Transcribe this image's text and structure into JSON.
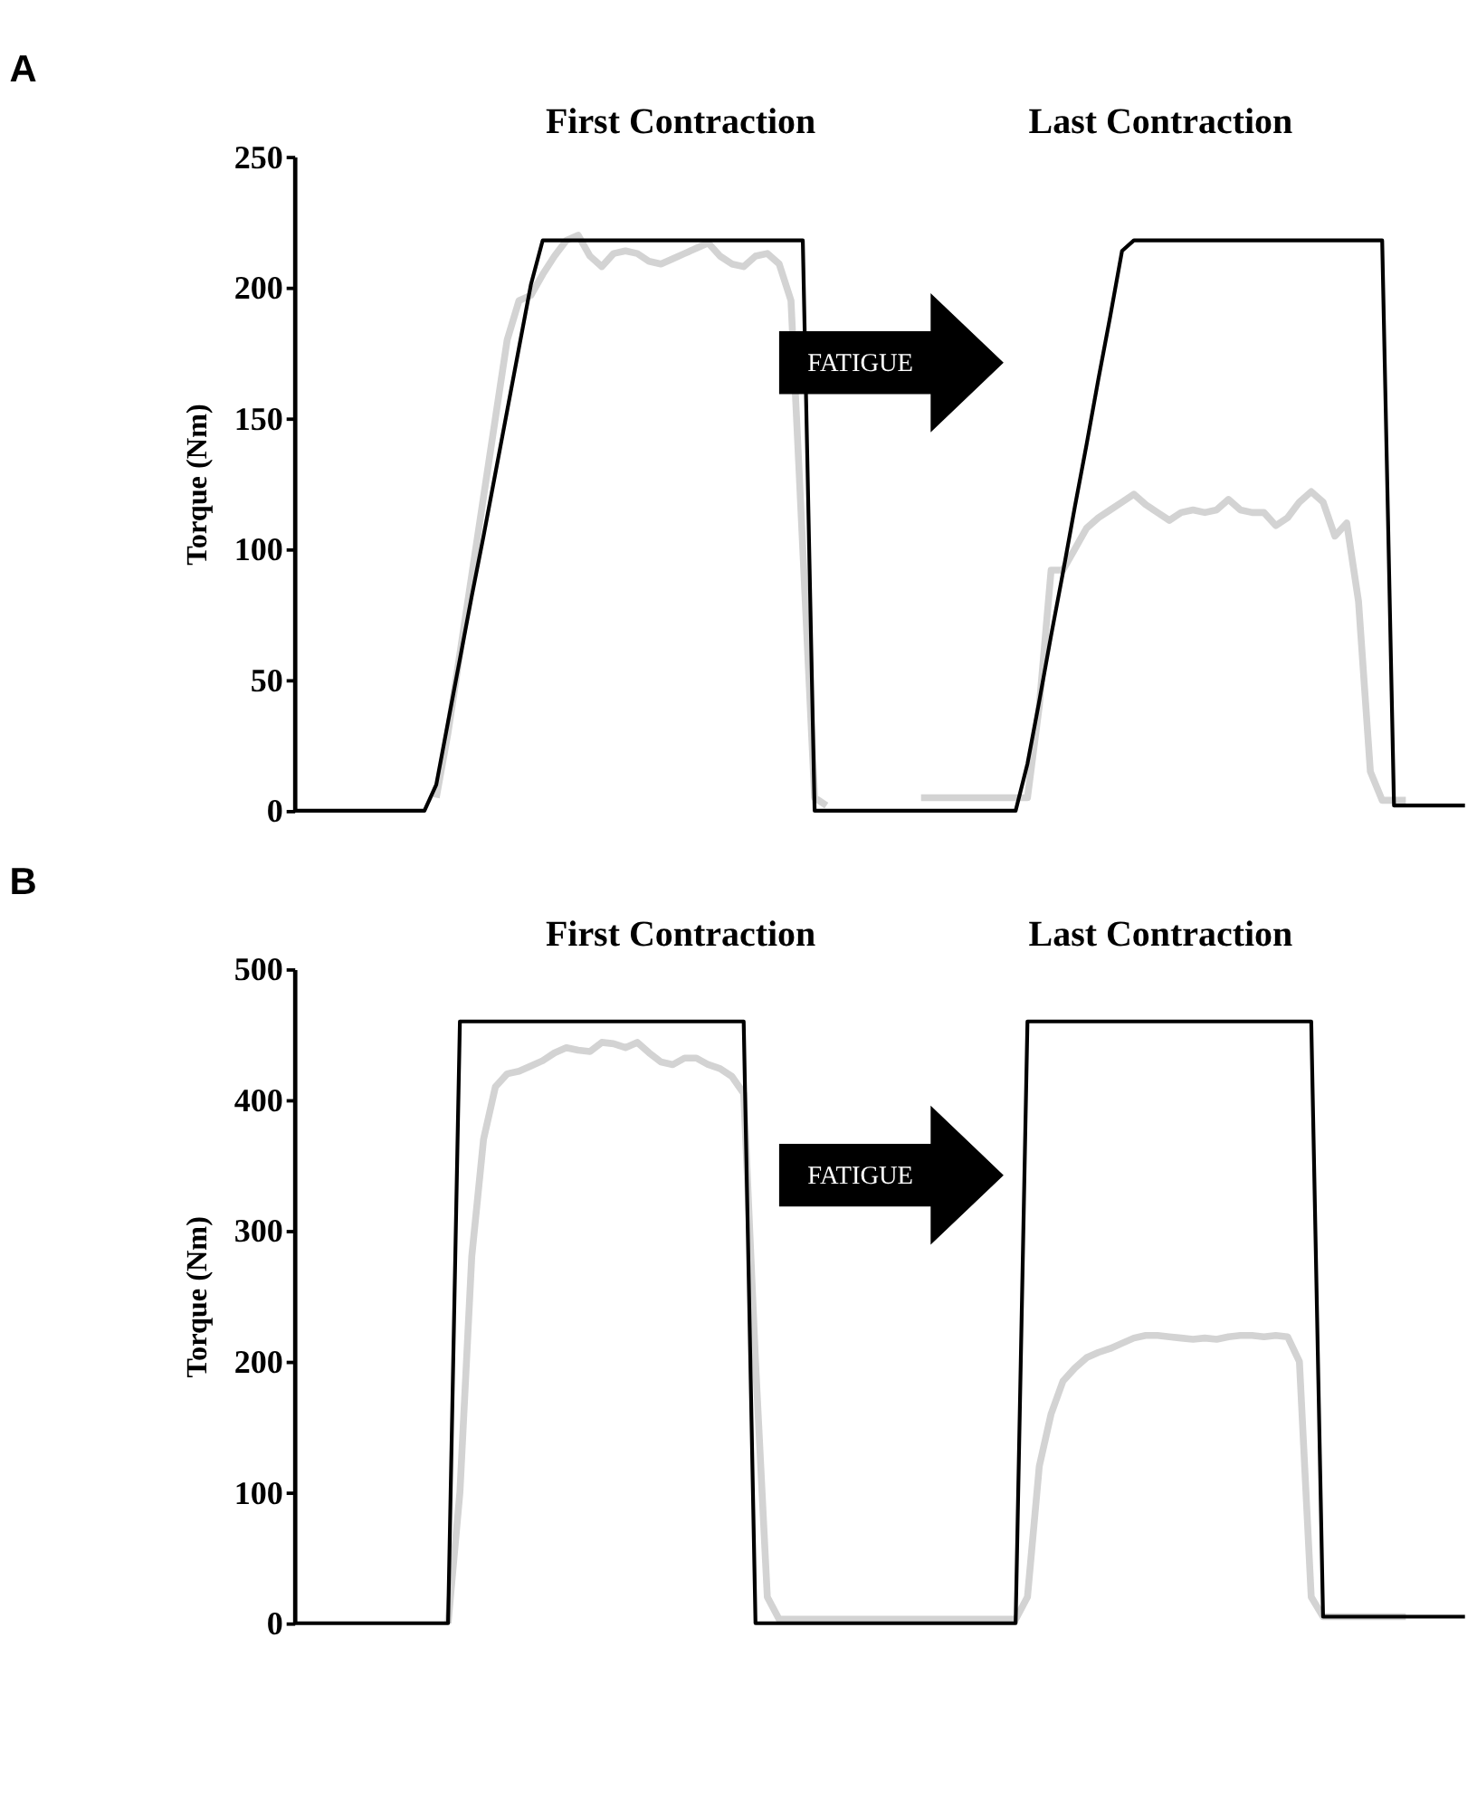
{
  "chart_data": [
    {
      "type": "line",
      "title": "A",
      "ylabel": "Torque (Nm)",
      "ylim": [
        0,
        250
      ],
      "yticks": [
        0,
        50,
        100,
        150,
        200,
        250
      ],
      "grid": false,
      "marker": "none",
      "line_style": "solid",
      "categories": [
        null,
        null,
        null,
        null,
        null,
        null,
        null,
        null,
        null,
        null,
        null,
        null,
        null,
        null,
        null,
        null,
        null,
        null,
        null,
        null,
        null,
        null,
        null,
        null,
        null,
        null,
        null,
        null,
        null,
        null,
        null,
        null,
        null,
        null,
        null,
        null,
        null,
        null,
        null,
        null,
        null,
        null,
        null,
        null,
        null,
        null,
        null,
        null,
        null,
        null,
        null,
        null,
        null,
        null,
        null,
        null,
        null,
        null,
        null,
        null,
        null,
        null,
        null,
        null,
        null,
        null,
        null,
        null,
        null,
        null,
        null,
        null,
        null,
        null,
        null,
        null,
        null,
        null,
        null,
        null,
        null,
        null,
        null,
        null,
        null,
        null,
        null,
        null,
        null,
        null,
        null,
        null,
        null,
        null,
        null,
        null,
        null,
        null,
        null,
        null
      ],
      "annotations": [
        "First Contraction",
        "Last Contraction",
        "FATIGUE"
      ],
      "series": [
        {
          "color": "#d3d3d3",
          "values": [
            null,
            null,
            null,
            null,
            null,
            null,
            null,
            null,
            null,
            null,
            null,
            null,
            5,
            30,
            60,
            90,
            120,
            150,
            180,
            195,
            197,
            205,
            212,
            218,
            220,
            212,
            208,
            213,
            214,
            213,
            210,
            209,
            211,
            213,
            215,
            217,
            212,
            209,
            208,
            212,
            213,
            209,
            195,
            100,
            5,
            2,
            null,
            null,
            null,
            null,
            null,
            null,
            null,
            5,
            5,
            5,
            5,
            5,
            5,
            5,
            5,
            5,
            5,
            40,
            92,
            92,
            100,
            108,
            112,
            115,
            118,
            121,
            117,
            114,
            111,
            114,
            115,
            114,
            115,
            119,
            115,
            114,
            114,
            109,
            112,
            118,
            122,
            118,
            105,
            110,
            80,
            15,
            4,
            4,
            4,
            null,
            null,
            null,
            null,
            null
          ]
        },
        {
          "color": "#000000",
          "values": [
            0,
            0,
            0,
            0,
            0,
            0,
            0,
            0,
            0,
            0,
            0,
            0,
            10,
            34,
            58,
            82,
            105,
            129,
            153,
            177,
            201,
            218,
            218,
            218,
            218,
            218,
            218,
            218,
            218,
            218,
            218,
            218,
            218,
            218,
            218,
            218,
            218,
            218,
            218,
            218,
            218,
            218,
            218,
            218,
            0,
            0,
            0,
            0,
            0,
            0,
            0,
            0,
            0,
            0,
            0,
            0,
            0,
            0,
            0,
            0,
            0,
            0,
            18,
            42,
            67,
            91,
            116,
            140,
            165,
            189,
            214,
            218,
            218,
            218,
            218,
            218,
            218,
            218,
            218,
            218,
            218,
            218,
            218,
            218,
            218,
            218,
            218,
            218,
            218,
            218,
            218,
            218,
            218,
            2,
            2,
            2,
            2,
            2,
            2,
            2
          ]
        }
      ]
    },
    {
      "type": "line",
      "title": "B",
      "ylabel": "Torque (Nm)",
      "ylim": [
        0,
        500
      ],
      "yticks": [
        0,
        100,
        200,
        300,
        400,
        500
      ],
      "grid": false,
      "marker": "none",
      "line_style": "solid",
      "categories": [
        null,
        null,
        null,
        null,
        null,
        null,
        null,
        null,
        null,
        null,
        null,
        null,
        null,
        null,
        null,
        null,
        null,
        null,
        null,
        null,
        null,
        null,
        null,
        null,
        null,
        null,
        null,
        null,
        null,
        null,
        null,
        null,
        null,
        null,
        null,
        null,
        null,
        null,
        null,
        null,
        null,
        null,
        null,
        null,
        null,
        null,
        null,
        null,
        null,
        null,
        null,
        null,
        null,
        null,
        null,
        null,
        null,
        null,
        null,
        null,
        null,
        null,
        null,
        null,
        null,
        null,
        null,
        null,
        null,
        null,
        null,
        null,
        null,
        null,
        null,
        null,
        null,
        null,
        null,
        null,
        null,
        null,
        null,
        null,
        null,
        null,
        null,
        null,
        null,
        null,
        null,
        null,
        null,
        null,
        null,
        null,
        null,
        null,
        null,
        null
      ],
      "annotations": [
        "First Contraction",
        "Last Contraction",
        "FATIGUE"
      ],
      "series": [
        {
          "color": "#d3d3d3",
          "values": [
            null,
            null,
            null,
            null,
            null,
            null,
            null,
            null,
            null,
            null,
            null,
            null,
            null,
            0,
            100,
            280,
            370,
            410,
            420,
            422,
            426,
            430,
            436,
            440,
            438,
            437,
            444,
            443,
            440,
            444,
            436,
            429,
            427,
            432,
            432,
            427,
            424,
            418,
            405,
            200,
            20,
            3,
            3,
            3,
            3,
            3,
            3,
            3,
            3,
            3,
            3,
            3,
            3,
            3,
            3,
            3,
            3,
            3,
            3,
            3,
            3,
            3,
            20,
            120,
            160,
            185,
            195,
            203,
            207,
            210,
            214,
            218,
            220,
            220,
            219,
            218,
            217,
            218,
            217,
            219,
            220,
            220,
            219,
            220,
            219,
            200,
            20,
            5,
            5,
            5,
            5,
            5,
            5,
            5,
            5,
            null,
            null,
            null,
            null,
            null
          ]
        },
        {
          "color": "#000000",
          "values": [
            0,
            0,
            0,
            0,
            0,
            0,
            0,
            0,
            0,
            0,
            0,
            0,
            0,
            0,
            460,
            460,
            460,
            460,
            460,
            460,
            460,
            460,
            460,
            460,
            460,
            460,
            460,
            460,
            460,
            460,
            460,
            460,
            460,
            460,
            460,
            460,
            460,
            460,
            460,
            0,
            0,
            0,
            0,
            0,
            0,
            0,
            0,
            0,
            0,
            0,
            0,
            0,
            0,
            0,
            0,
            0,
            0,
            0,
            0,
            0,
            0,
            0,
            460,
            460,
            460,
            460,
            460,
            460,
            460,
            460,
            460,
            460,
            460,
            460,
            460,
            460,
            460,
            460,
            460,
            460,
            460,
            460,
            460,
            460,
            460,
            460,
            460,
            5,
            5,
            5,
            5,
            5,
            5,
            5,
            5,
            5,
            5,
            5,
            5,
            5
          ]
        }
      ]
    }
  ]
}
